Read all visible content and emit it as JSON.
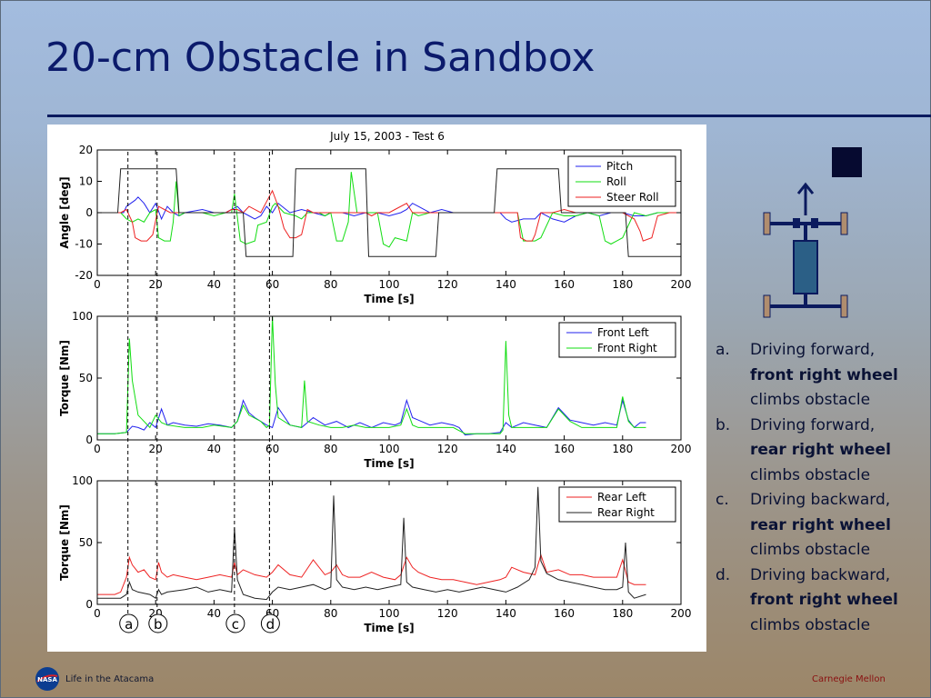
{
  "slide": {
    "title": "20-cm Obstacle in Sandbox"
  },
  "chart_data": [
    {
      "type": "line",
      "title": "July 15, 2003 - Test 6",
      "xlabel": "Time [s]",
      "ylabel": "Angle [deg]",
      "xlim": [
        0,
        200
      ],
      "ylim": [
        -20,
        20
      ],
      "xticks": [
        0,
        20,
        40,
        60,
        80,
        100,
        120,
        140,
        160,
        180,
        200
      ],
      "yticks": [
        20,
        10,
        0,
        -10,
        -20
      ],
      "legend_position": "top-right",
      "series": [
        {
          "name": "Pitch",
          "color": "#2222ee",
          "x": [
            0,
            9,
            10,
            13,
            14,
            16,
            18,
            20,
            22,
            24,
            26,
            28,
            30,
            36,
            40,
            44,
            46,
            48,
            50,
            52,
            54,
            56,
            58,
            60,
            62,
            66,
            70,
            74,
            78,
            80,
            84,
            88,
            92,
            96,
            100,
            104,
            106,
            108,
            110,
            114,
            118,
            122,
            126,
            130,
            134,
            138,
            140,
            142,
            146,
            150,
            152,
            156,
            160,
            164,
            168,
            172,
            176,
            180,
            184,
            188,
            192,
            196,
            200
          ],
          "y": [
            0,
            0,
            2,
            4,
            5,
            3,
            0,
            3,
            -2,
            2,
            0,
            -1,
            0,
            1,
            0,
            0,
            1,
            2,
            0,
            -1,
            -2,
            -1,
            2,
            0,
            3,
            0,
            1,
            0,
            -1,
            0,
            0,
            -1,
            0,
            0,
            -1,
            0,
            1,
            3,
            2,
            0,
            1,
            0,
            0,
            0,
            0,
            0,
            -2,
            -3,
            -2,
            -2,
            0,
            -2,
            -3,
            -1,
            0,
            -1,
            0,
            0,
            -1,
            -1,
            0,
            0,
            0
          ]
        },
        {
          "name": "Roll",
          "color": "#11dd11",
          "x": [
            0,
            8,
            10,
            12,
            14,
            16,
            18,
            20,
            21,
            23,
            25,
            26,
            27,
            28,
            30,
            36,
            40,
            44,
            46,
            47,
            49,
            51,
            54,
            55,
            58,
            60,
            61,
            64,
            68,
            70,
            72,
            76,
            78,
            80,
            82,
            84,
            86,
            87,
            89,
            92,
            96,
            98,
            100,
            102,
            106,
            108,
            110,
            114,
            118,
            122,
            126,
            130,
            134,
            138,
            140,
            142,
            144,
            146,
            150,
            152,
            156,
            160,
            164,
            168,
            172,
            174,
            176,
            178,
            180,
            184,
            188,
            192,
            196,
            200
          ],
          "y": [
            0,
            0,
            -2,
            -3,
            -2,
            -3,
            0,
            1,
            -8,
            -9,
            -9,
            -3,
            10,
            -1,
            0,
            0,
            -1,
            0,
            0,
            6,
            -9,
            -10,
            -9,
            -4,
            -3,
            2,
            3,
            0,
            -1,
            -2,
            0,
            0,
            -1,
            0,
            -9,
            -9,
            -3,
            13,
            0,
            0,
            0,
            -10,
            -11,
            -8,
            -9,
            0,
            -1,
            0,
            0,
            0,
            0,
            0,
            0,
            0,
            0,
            0,
            0,
            -9,
            -9,
            -8,
            0,
            -1,
            -1,
            0,
            -1,
            -9,
            -10,
            -9,
            -8,
            0,
            -1,
            0,
            0,
            0
          ]
        },
        {
          "name": "Steer Roll",
          "color": "#ee2222",
          "x": [
            0,
            8,
            10,
            12,
            13,
            15,
            17,
            19,
            21,
            23,
            25,
            27,
            30,
            36,
            40,
            44,
            46,
            48,
            50,
            52,
            56,
            60,
            62,
            64,
            66,
            68,
            70,
            72,
            74,
            76,
            80,
            84,
            88,
            92,
            94,
            96,
            100,
            102,
            106,
            108,
            110,
            114,
            118,
            122,
            126,
            130,
            134,
            138,
            140,
            142,
            144,
            145,
            147,
            149,
            150,
            152,
            156,
            160,
            164,
            168,
            172,
            176,
            180,
            184,
            186,
            187,
            190,
            192,
            196,
            200
          ],
          "y": [
            0,
            0,
            1,
            -3,
            -8,
            -9,
            -9,
            -7,
            2,
            1,
            0,
            0,
            0,
            0,
            0,
            0,
            1,
            1,
            0,
            2,
            0,
            7,
            2,
            -5,
            -8,
            -8,
            -7,
            1,
            0,
            0,
            0,
            0,
            0,
            0,
            -1,
            0,
            0,
            1,
            3,
            0,
            0,
            0,
            0,
            0,
            0,
            0,
            0,
            0,
            0,
            0,
            0,
            -8,
            -9,
            -9,
            -7,
            0,
            0,
            1,
            0,
            0,
            0,
            0,
            0,
            -2,
            -6,
            -9,
            -8,
            -1,
            0,
            0
          ]
        },
        {
          "name": "",
          "color": "#222222",
          "x": [
            0,
            7,
            8,
            27,
            28,
            50,
            51,
            67,
            68,
            92,
            93,
            116,
            117,
            136,
            137,
            158,
            159,
            181,
            182,
            200
          ],
          "y": [
            0,
            0,
            14,
            14,
            0,
            0,
            -14,
            -14,
            14,
            14,
            -14,
            -14,
            0,
            0,
            14,
            14,
            0,
            0,
            -14,
            -14
          ]
        }
      ]
    },
    {
      "type": "line",
      "xlabel": "Time [s]",
      "ylabel": "Torque [Nm]",
      "xlim": [
        0,
        200
      ],
      "ylim": [
        0,
        100
      ],
      "xticks": [
        0,
        20,
        40,
        60,
        80,
        100,
        120,
        140,
        160,
        180,
        200
      ],
      "yticks": [
        100,
        50,
        0
      ],
      "legend_position": "top-right",
      "series": [
        {
          "name": "Front Left",
          "color": "#2222ee",
          "x": [
            0,
            6,
            10,
            12,
            14,
            16,
            18,
            20,
            22,
            24,
            26,
            30,
            34,
            38,
            42,
            46,
            48,
            50,
            52,
            54,
            58,
            60,
            62,
            66,
            70,
            72,
            74,
            78,
            82,
            86,
            90,
            94,
            98,
            102,
            104,
            106,
            108,
            110,
            114,
            118,
            122,
            124,
            126,
            130,
            134,
            138,
            140,
            142,
            146,
            150,
            154,
            158,
            162,
            166,
            170,
            174,
            178,
            180,
            182,
            184,
            186,
            188
          ],
          "y": [
            5,
            5,
            6,
            11,
            10,
            8,
            14,
            10,
            25,
            12,
            14,
            12,
            11,
            13,
            12,
            10,
            15,
            32,
            22,
            18,
            12,
            10,
            26,
            12,
            10,
            14,
            18,
            12,
            15,
            10,
            14,
            10,
            14,
            12,
            14,
            32,
            18,
            16,
            12,
            14,
            12,
            10,
            4,
            5,
            5,
            6,
            14,
            10,
            14,
            12,
            10,
            26,
            16,
            14,
            12,
            14,
            12,
            32,
            16,
            10,
            14,
            14
          ]
        },
        {
          "name": "Front Right",
          "color": "#11dd11",
          "x": [
            0,
            6,
            10,
            11,
            12,
            14,
            18,
            20,
            22,
            24,
            30,
            36,
            40,
            46,
            48,
            50,
            52,
            56,
            58,
            59,
            60,
            61,
            62,
            66,
            70,
            71,
            72,
            76,
            80,
            84,
            88,
            92,
            96,
            100,
            104,
            106,
            108,
            110,
            114,
            118,
            122,
            126,
            130,
            134,
            138,
            139,
            140,
            141,
            142,
            146,
            150,
            154,
            158,
            162,
            166,
            170,
            174,
            178,
            180,
            182,
            184,
            186,
            188
          ],
          "y": [
            5,
            5,
            6,
            82,
            48,
            20,
            10,
            20,
            14,
            12,
            10,
            10,
            12,
            10,
            15,
            28,
            20,
            15,
            10,
            12,
            100,
            45,
            18,
            12,
            10,
            48,
            15,
            12,
            10,
            10,
            12,
            10,
            10,
            10,
            12,
            25,
            12,
            10,
            10,
            10,
            10,
            5,
            5,
            5,
            5,
            8,
            80,
            20,
            10,
            10,
            10,
            10,
            25,
            15,
            10,
            10,
            10,
            10,
            35,
            15,
            10,
            10,
            10
          ]
        }
      ]
    },
    {
      "type": "line",
      "xlabel": "Time [s]",
      "ylabel": "Torque [Nm]",
      "xlim": [
        0,
        200
      ],
      "ylim": [
        0,
        100
      ],
      "xticks": [
        0,
        20,
        40,
        60,
        80,
        100,
        120,
        140,
        160,
        180,
        200
      ],
      "yticks": [
        100,
        50,
        0
      ],
      "legend_position": "top-right",
      "annotations": [
        "a",
        "b",
        "c",
        "d"
      ],
      "annotation_times": [
        10.5,
        20.5,
        47,
        59
      ],
      "series": [
        {
          "name": "Rear Left",
          "color": "#ee2222",
          "x": [
            0,
            6,
            8,
            10,
            11,
            12,
            14,
            16,
            18,
            20,
            21,
            22,
            24,
            26,
            30,
            34,
            38,
            42,
            46,
            47,
            48,
            50,
            54,
            58,
            60,
            62,
            66,
            70,
            74,
            78,
            80,
            82,
            84,
            86,
            90,
            94,
            98,
            102,
            104,
            106,
            108,
            110,
            114,
            118,
            122,
            126,
            130,
            134,
            138,
            140,
            142,
            146,
            150,
            152,
            154,
            158,
            162,
            166,
            170,
            174,
            178,
            180,
            182,
            184,
            188
          ],
          "y": [
            8,
            8,
            10,
            22,
            38,
            32,
            26,
            28,
            22,
            20,
            34,
            26,
            22,
            24,
            22,
            20,
            22,
            24,
            22,
            34,
            24,
            28,
            24,
            22,
            26,
            32,
            24,
            22,
            36,
            24,
            26,
            32,
            24,
            22,
            22,
            26,
            22,
            20,
            24,
            38,
            30,
            26,
            22,
            20,
            20,
            18,
            16,
            18,
            20,
            22,
            30,
            26,
            24,
            40,
            26,
            28,
            24,
            24,
            22,
            22,
            22,
            36,
            18,
            16,
            16
          ]
        },
        {
          "name": "Rear Right",
          "color": "#222222",
          "x": [
            0,
            8,
            10,
            11,
            12,
            14,
            18,
            20,
            21,
            22,
            24,
            30,
            34,
            38,
            42,
            46,
            47,
            48,
            50,
            54,
            58,
            60,
            62,
            66,
            70,
            74,
            78,
            80,
            81,
            82,
            84,
            88,
            92,
            96,
            100,
            104,
            105,
            106,
            108,
            112,
            116,
            120,
            124,
            128,
            132,
            136,
            140,
            144,
            148,
            150,
            151,
            152,
            154,
            158,
            162,
            166,
            170,
            174,
            178,
            180,
            181,
            182,
            184,
            188
          ],
          "y": [
            5,
            5,
            8,
            18,
            12,
            10,
            8,
            5,
            12,
            8,
            10,
            12,
            14,
            10,
            12,
            10,
            62,
            20,
            8,
            5,
            4,
            10,
            14,
            12,
            14,
            16,
            12,
            14,
            88,
            20,
            14,
            12,
            14,
            12,
            14,
            16,
            70,
            18,
            14,
            12,
            10,
            12,
            10,
            12,
            14,
            12,
            10,
            14,
            20,
            30,
            95,
            35,
            25,
            20,
            18,
            16,
            14,
            12,
            12,
            14,
            50,
            10,
            5,
            8
          ]
        }
      ]
    }
  ],
  "rover_diagram": {
    "body_color": "#2b5f86",
    "wheel_color": "#b08d6e",
    "frame_color": "#0b1a5e"
  },
  "notes": {
    "items": [
      {
        "marker": "a.",
        "line1": "Driving forward,",
        "bold": "front right wheel",
        "line3": "climbs obstacle"
      },
      {
        "marker": "b.",
        "line1": "Driving forward,",
        "bold": "rear right wheel",
        "line3": "climbs obstacle"
      },
      {
        "marker": "c.",
        "line1": "Driving backward,",
        "bold": "rear right wheel",
        "line3": "climbs obstacle"
      },
      {
        "marker": "d.",
        "line1": "Driving backward,",
        "bold": "front right wheel",
        "line3": "climbs obstacle"
      }
    ]
  },
  "footer": {
    "logo_text": "NASA",
    "left_text": "Life in the Atacama",
    "right_text": "Carnegie Mellon"
  }
}
